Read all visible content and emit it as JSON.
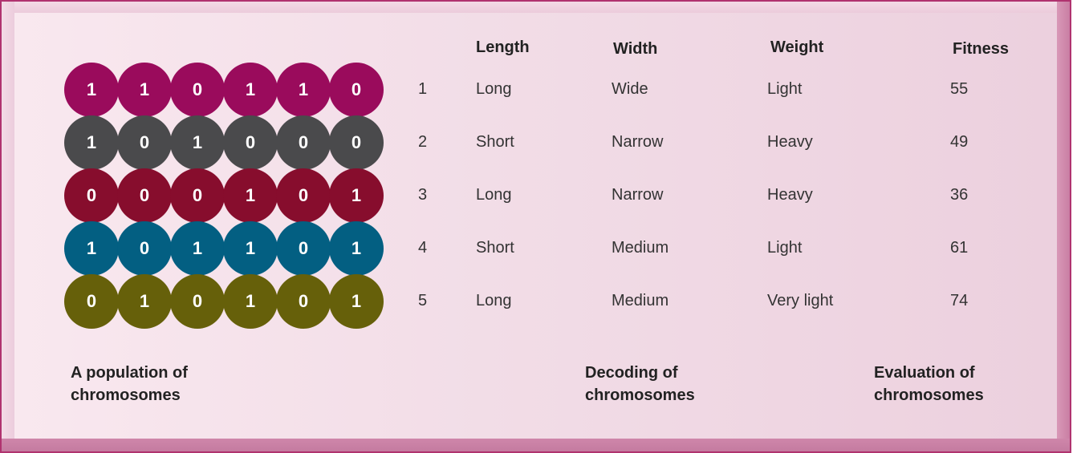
{
  "headers": {
    "length": "Length",
    "width": "Width",
    "weight": "Weight",
    "fitness": "Fitness"
  },
  "chromosomes": [
    {
      "index": "1",
      "bits": [
        "1",
        "1",
        "0",
        "1",
        "1",
        "0"
      ],
      "color": "#9a0b5c",
      "length": "Long",
      "width": "Wide",
      "weight": "Light",
      "fitness": "55"
    },
    {
      "index": "2",
      "bits": [
        "1",
        "0",
        "1",
        "0",
        "0",
        "0"
      ],
      "color": "#4a4a4c",
      "length": "Short",
      "width": "Narrow",
      "weight": "Heavy",
      "fitness": "49"
    },
    {
      "index": "3",
      "bits": [
        "0",
        "0",
        "0",
        "1",
        "0",
        "1"
      ],
      "color": "#870d2d",
      "length": "Long",
      "width": "Narrow",
      "weight": "Heavy",
      "fitness": "36"
    },
    {
      "index": "4",
      "bits": [
        "1",
        "0",
        "1",
        "1",
        "0",
        "1"
      ],
      "color": "#035f82",
      "length": "Short",
      "width": "Medium",
      "weight": "Light",
      "fitness": "61"
    },
    {
      "index": "5",
      "bits": [
        "0",
        "1",
        "0",
        "1",
        "0",
        "1"
      ],
      "color": "#66600a",
      "length": "Long",
      "width": "Medium",
      "weight": "Very light",
      "fitness": "74"
    }
  ],
  "captions": {
    "population": [
      "A population of",
      "chromosomes"
    ],
    "decoding": [
      "Decoding of",
      "chromosomes"
    ],
    "evaluation": [
      "Evaluation of",
      "chromosomes"
    ]
  }
}
